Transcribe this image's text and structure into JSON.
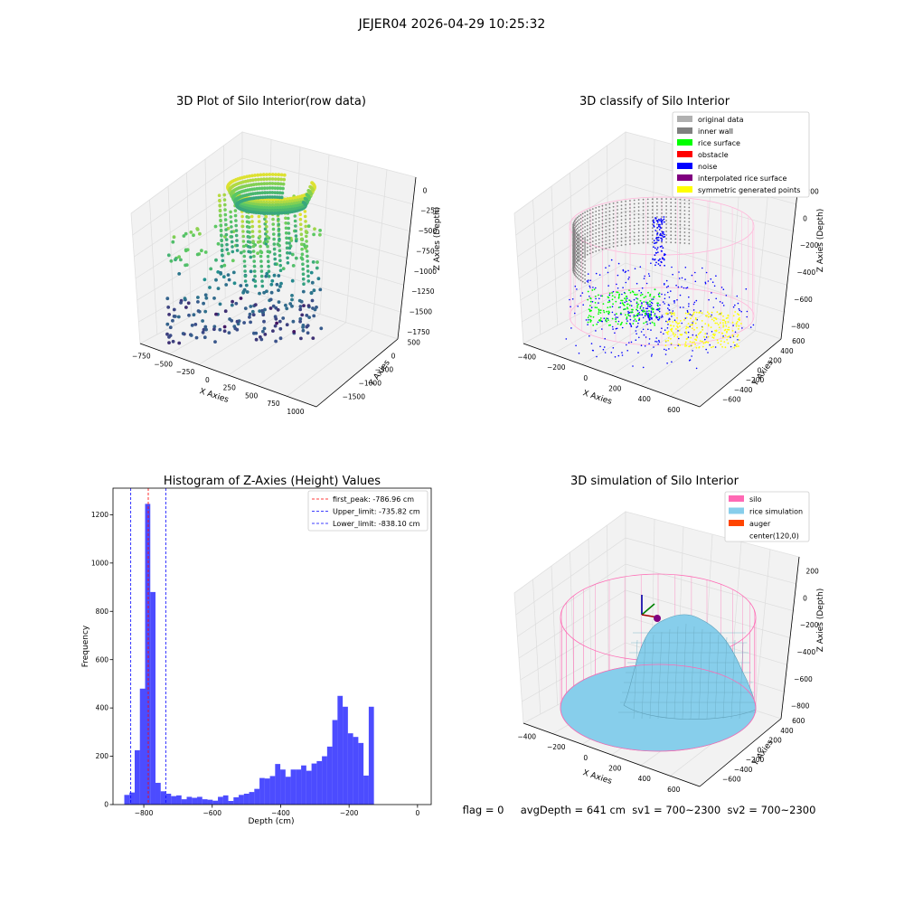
{
  "figure": {
    "suptitle": "JEJER04 2026-04-29 10:25:32",
    "status_line": "flag = 0     avgDepth = 641 cm  sv1 = 700~2300  sv2 = 700~2300"
  },
  "colors": {
    "viridis": [
      "#440154",
      "#3b528b",
      "#21908d",
      "#5dc963",
      "#fde725"
    ],
    "hist_bar": "#0000ff",
    "first_peak": "#ff0000",
    "limit": "#0000ff",
    "silo_wire": "#ff69b4",
    "rice_sim": "#87ceeb"
  },
  "chart_data": [
    {
      "id": "raw",
      "type": "scatter",
      "title": "3D Plot of Silo Interior(row data)",
      "xlabel": "X Axies",
      "ylabel": "Y Axies",
      "zlabel": "Z Axies (Depth)",
      "x_ticks": [
        "−750",
        "−500",
        "−250",
        "0",
        "250",
        "500",
        "750",
        "1000"
      ],
      "y_ticks": [
        "500",
        "0",
        "−500",
        "−1000",
        "−1500"
      ],
      "z_ticks": [
        "0",
        "−250",
        "−500",
        "−750",
        "−1000",
        "−1250",
        "−1500",
        "−1750"
      ],
      "xlim": [
        -800,
        1050
      ],
      "ylim": [
        -1600,
        700
      ],
      "zlim": [
        -1800,
        100
      ],
      "colormap": "viridis"
    },
    {
      "id": "classify",
      "type": "scatter",
      "title": "3D classify of Silo Interior",
      "xlabel": "X Axies",
      "ylabel": "Y Axies",
      "zlabel": "Z Axies (Depth)",
      "x_ticks": [
        "−400",
        "−200",
        "0",
        "200",
        "400",
        "600"
      ],
      "y_ticks": [
        "600",
        "400",
        "200",
        "0",
        "−200",
        "−400",
        "−600"
      ],
      "z_ticks": [
        "200",
        "0",
        "−200",
        "−400",
        "−600",
        "−800"
      ],
      "xlim": [
        -500,
        700
      ],
      "ylim": [
        -650,
        650
      ],
      "zlim": [
        -900,
        250
      ],
      "legend": [
        {
          "label": "original data",
          "color": "#b0b0b0"
        },
        {
          "label": "inner wall",
          "color": "#808080"
        },
        {
          "label": "rice surface",
          "color": "#00ff00"
        },
        {
          "label": "obstacle",
          "color": "#ff0000"
        },
        {
          "label": "noise",
          "color": "#0000ff"
        },
        {
          "label": "interpolated rice surface",
          "color": "#800080"
        },
        {
          "label": "symmetric generated points",
          "color": "#ffff00"
        }
      ],
      "legend_position": "upper right"
    },
    {
      "id": "hist",
      "type": "bar",
      "title": "Histogram of Z-Axies (Height) Values",
      "xlabel": "Depth (cm)",
      "ylabel": "Frequency",
      "xlim": [
        -890,
        40
      ],
      "ylim": [
        0,
        1310
      ],
      "x_ticks": [
        -800,
        -600,
        -400,
        -200,
        0
      ],
      "x_tick_labels": [
        "−800",
        "−600",
        "−400",
        "−200",
        "0"
      ],
      "y_ticks": [
        0,
        200,
        400,
        600,
        800,
        1000,
        1200
      ],
      "y_tick_labels": [
        "0",
        "200",
        "400",
        "600",
        "800",
        "1000",
        "1200"
      ],
      "bin_start": -857,
      "bin_width": 15.2,
      "values": [
        40,
        50,
        225,
        480,
        1245,
        880,
        90,
        55,
        45,
        35,
        38,
        22,
        32,
        28,
        32,
        22,
        20,
        16,
        32,
        38,
        15,
        30,
        40,
        45,
        52,
        65,
        110,
        108,
        118,
        168,
        145,
        115,
        145,
        145,
        162,
        140,
        170,
        180,
        200,
        240,
        350,
        450,
        405,
        295,
        280,
        255,
        120,
        405
      ],
      "vlines": [
        {
          "x": -786.96,
          "label": "first_peak: -786.96 cm",
          "color": "#ff0000"
        },
        {
          "x": -735.82,
          "label": "Upper_limit: -735.82 cm",
          "color": "#0000ff"
        },
        {
          "x": -838.1,
          "label": "Lower_limit: -838.10 cm",
          "color": "#0000ff"
        }
      ],
      "legend_position": "upper right"
    },
    {
      "id": "sim",
      "type": "surface",
      "title": "3D simulation of Silo Interior",
      "xlabel": "X Axies",
      "ylabel": "Y Axies",
      "zlabel": "Z Axies (Depth)",
      "x_ticks": [
        "−400",
        "−200",
        "0",
        "200",
        "400",
        "600"
      ],
      "y_ticks": [
        "600",
        "400",
        "200",
        "0",
        "−200",
        "−400",
        "−600"
      ],
      "z_ticks": [
        "200",
        "0",
        "−200",
        "−400",
        "−600",
        "−800"
      ],
      "xlim": [
        -500,
        700
      ],
      "ylim": [
        -650,
        650
      ],
      "zlim": [
        -900,
        250
      ],
      "legend": [
        {
          "label": "silo",
          "color": "#ff69b4"
        },
        {
          "label": "rice simulation",
          "color": "#87ceeb"
        },
        {
          "label": "auger",
          "color": "#ff4500"
        },
        {
          "label": "center(120,0)",
          "color": ""
        }
      ],
      "legend_position": "upper right"
    }
  ]
}
